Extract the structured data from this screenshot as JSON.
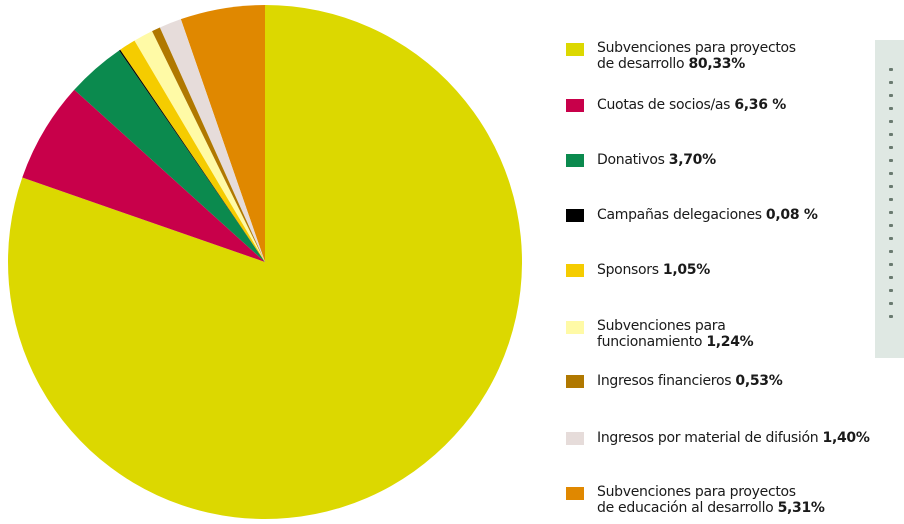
{
  "chart_data": {
    "type": "pie",
    "start_angle_deg": 0,
    "direction": "clockwise",
    "slices": [
      {
        "label_lines": [
          "Subvenciones para proyectos",
          "de desarrollo"
        ],
        "pct_label": "80,33%",
        "value": 80.33,
        "color": "#dcd800"
      },
      {
        "label_lines": [
          "Cuotas de socios/as"
        ],
        "pct_label": "6,36 %",
        "value": 6.36,
        "color": "#c8004a"
      },
      {
        "label_lines": [
          "Donativos"
        ],
        "pct_label": "3,70%",
        "value": 3.7,
        "color": "#0b8a4e"
      },
      {
        "label_lines": [
          "Campañas delegaciones"
        ],
        "pct_label": "0,08 %",
        "value": 0.08,
        "color": "#000000"
      },
      {
        "label_lines": [
          "Sponsors"
        ],
        "pct_label": "1,05%",
        "value": 1.05,
        "color": "#f5cc00"
      },
      {
        "label_lines": [
          "Subvenciones para",
          "funcionamiento"
        ],
        "pct_label": "1,24%",
        "value": 1.24,
        "color": "#fffaa6"
      },
      {
        "label_lines": [
          "Ingresos  financieros"
        ],
        "pct_label": "0,53%",
        "value": 0.53,
        "color": "#b07800"
      },
      {
        "label_lines": [
          "Ingresos por material de difusión"
        ],
        "pct_label": "1,40%",
        "value": 1.4,
        "color": "#e6dcda"
      },
      {
        "label_lines": [
          "Subvenciones para proyectos",
          "de educación al desarrollo"
        ],
        "pct_label": "5,31%",
        "value": 5.31,
        "color": "#e08800"
      }
    ]
  }
}
